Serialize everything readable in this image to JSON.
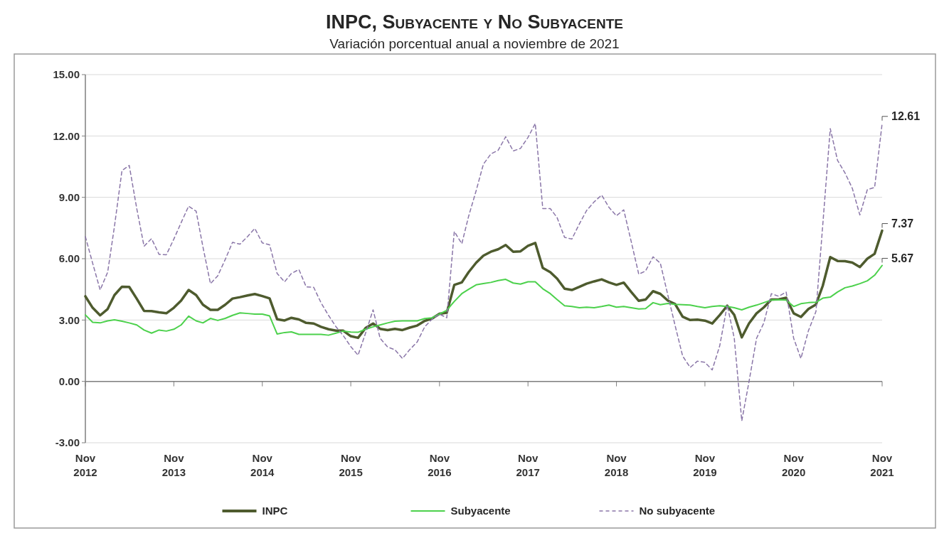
{
  "chart_data": {
    "type": "line",
    "title": "INPC, Subyacente y No Subyacente",
    "subtitle": "Variación porcentual anual a noviembre de 2021",
    "x": [
      "2012-11",
      "2012-12",
      "2013-01",
      "2013-02",
      "2013-03",
      "2013-04",
      "2013-05",
      "2013-06",
      "2013-07",
      "2013-08",
      "2013-09",
      "2013-10",
      "2013-11",
      "2013-12",
      "2014-01",
      "2014-02",
      "2014-03",
      "2014-04",
      "2014-05",
      "2014-06",
      "2014-07",
      "2014-08",
      "2014-09",
      "2014-10",
      "2014-11",
      "2014-12",
      "2015-01",
      "2015-02",
      "2015-03",
      "2015-04",
      "2015-05",
      "2015-06",
      "2015-07",
      "2015-08",
      "2015-09",
      "2015-10",
      "2015-11",
      "2015-12",
      "2016-01",
      "2016-02",
      "2016-03",
      "2016-04",
      "2016-05",
      "2016-06",
      "2016-07",
      "2016-08",
      "2016-09",
      "2016-10",
      "2016-11",
      "2016-12",
      "2017-01",
      "2017-02",
      "2017-03",
      "2017-04",
      "2017-05",
      "2017-06",
      "2017-07",
      "2017-08",
      "2017-09",
      "2017-10",
      "2017-11",
      "2017-12",
      "2018-01",
      "2018-02",
      "2018-03",
      "2018-04",
      "2018-05",
      "2018-06",
      "2018-07",
      "2018-08",
      "2018-09",
      "2018-10",
      "2018-11",
      "2018-12",
      "2019-01",
      "2019-02",
      "2019-03",
      "2019-04",
      "2019-05",
      "2019-06",
      "2019-07",
      "2019-08",
      "2019-09",
      "2019-10",
      "2019-11",
      "2019-12",
      "2020-01",
      "2020-02",
      "2020-03",
      "2020-04",
      "2020-05",
      "2020-06",
      "2020-07",
      "2020-08",
      "2020-09",
      "2020-10",
      "2020-11",
      "2020-12",
      "2021-01",
      "2021-02",
      "2021-03",
      "2021-04",
      "2021-05",
      "2021-06",
      "2021-07",
      "2021-08",
      "2021-09",
      "2021-10",
      "2021-11"
    ],
    "series": [
      {
        "name": "INPC",
        "color": "#4e5b2e",
        "line_style": "solid",
        "values": [
          4.16,
          3.6,
          3.23,
          3.54,
          4.22,
          4.63,
          4.62,
          4.04,
          3.45,
          3.44,
          3.38,
          3.33,
          3.6,
          3.95,
          4.47,
          4.22,
          3.75,
          3.5,
          3.5,
          3.75,
          4.05,
          4.12,
          4.2,
          4.27,
          4.17,
          4.06,
          3.04,
          2.98,
          3.11,
          3.03,
          2.86,
          2.83,
          2.67,
          2.55,
          2.48,
          2.48,
          2.21,
          2.13,
          2.61,
          2.83,
          2.57,
          2.51,
          2.57,
          2.51,
          2.63,
          2.73,
          2.96,
          3.07,
          3.31,
          3.36,
          4.72,
          4.84,
          5.34,
          5.8,
          6.15,
          6.34,
          6.46,
          6.67,
          6.34,
          6.36,
          6.63,
          6.77,
          5.55,
          5.34,
          5.03,
          4.53,
          4.47,
          4.62,
          4.78,
          4.89,
          4.99,
          4.84,
          4.72,
          4.83,
          4.37,
          3.94,
          4.0,
          4.41,
          4.28,
          3.95,
          3.78,
          3.16,
          3.0,
          3.02,
          2.97,
          2.83,
          3.24,
          3.7,
          3.25,
          2.15,
          2.84,
          3.33,
          3.62,
          4.0,
          4.01,
          4.09,
          3.33,
          3.15,
          3.54,
          3.76,
          4.67,
          6.08,
          5.89,
          5.88,
          5.81,
          5.59,
          6.0,
          6.24,
          7.37
        ]
      },
      {
        "name": "Subyacente",
        "color": "#4cd14c",
        "line_style": "solid",
        "values": [
          3.25,
          2.89,
          2.86,
          2.96,
          3.01,
          2.94,
          2.86,
          2.76,
          2.51,
          2.36,
          2.51,
          2.46,
          2.55,
          2.76,
          3.19,
          2.96,
          2.86,
          3.08,
          2.98,
          3.08,
          3.23,
          3.35,
          3.32,
          3.29,
          3.29,
          3.2,
          2.32,
          2.39,
          2.42,
          2.3,
          2.3,
          2.3,
          2.3,
          2.26,
          2.36,
          2.46,
          2.41,
          2.4,
          2.55,
          2.67,
          2.76,
          2.86,
          2.94,
          2.96,
          2.96,
          2.96,
          3.07,
          3.11,
          3.29,
          3.48,
          3.91,
          4.29,
          4.5,
          4.72,
          4.78,
          4.84,
          4.93,
          4.99,
          4.81,
          4.76,
          4.87,
          4.87,
          4.53,
          4.29,
          4.0,
          3.7,
          3.66,
          3.6,
          3.63,
          3.6,
          3.66,
          3.73,
          3.63,
          3.66,
          3.6,
          3.54,
          3.56,
          3.85,
          3.75,
          3.81,
          3.77,
          3.75,
          3.73,
          3.66,
          3.6,
          3.66,
          3.7,
          3.66,
          3.6,
          3.5,
          3.63,
          3.73,
          3.85,
          3.98,
          3.99,
          3.98,
          3.66,
          3.8,
          3.85,
          3.87,
          4.07,
          4.12,
          4.37,
          4.58,
          4.66,
          4.78,
          4.92,
          5.19,
          5.67
        ]
      },
      {
        "name": "No subyacente",
        "color": "#8a76a8",
        "line_style": "dashed",
        "values": [
          7.08,
          5.78,
          4.47,
          5.34,
          7.58,
          10.31,
          10.56,
          8.45,
          6.61,
          6.98,
          6.21,
          6.19,
          6.96,
          7.76,
          8.57,
          8.32,
          6.58,
          4.78,
          5.16,
          5.96,
          6.8,
          6.71,
          7.08,
          7.48,
          6.77,
          6.68,
          5.28,
          4.87,
          5.28,
          5.47,
          4.62,
          4.6,
          3.85,
          3.23,
          2.67,
          2.24,
          1.7,
          1.28,
          2.36,
          3.5,
          2.11,
          1.68,
          1.55,
          1.12,
          1.55,
          1.93,
          2.67,
          3.04,
          3.29,
          3.11,
          7.33,
          6.73,
          8.07,
          9.32,
          10.62,
          11.12,
          11.3,
          11.96,
          11.27,
          11.39,
          11.93,
          12.61,
          8.45,
          8.45,
          8.01,
          7.04,
          6.96,
          7.7,
          8.36,
          8.78,
          9.11,
          8.51,
          8.1,
          8.39,
          6.83,
          5.24,
          5.4,
          6.09,
          5.78,
          4.22,
          2.73,
          1.24,
          0.68,
          0.99,
          0.93,
          0.56,
          1.74,
          3.73,
          2.11,
          -1.93,
          0.0,
          2.11,
          2.86,
          4.29,
          4.16,
          4.37,
          2.11,
          1.12,
          2.48,
          3.42,
          7.64,
          12.36,
          10.81,
          10.19,
          9.44,
          8.14,
          9.38,
          9.48,
          12.61
        ]
      }
    ],
    "xlim": [
      "2012-11",
      "2021-11"
    ],
    "xticks": [
      {
        "value": "2012-11",
        "label": "Nov 2012"
      },
      {
        "value": "2013-11",
        "label": "Nov 2013"
      },
      {
        "value": "2014-11",
        "label": "Nov 2014"
      },
      {
        "value": "2015-11",
        "label": "Nov 2015"
      },
      {
        "value": "2016-11",
        "label": "Nov 2016"
      },
      {
        "value": "2017-11",
        "label": "Nov 2017"
      },
      {
        "value": "2018-11",
        "label": "Nov 2018"
      },
      {
        "value": "2019-11",
        "label": "Nov 2019"
      },
      {
        "value": "2020-11",
        "label": "Nov 2020"
      },
      {
        "value": "2021-11",
        "label": "Nov 2021"
      }
    ],
    "ylim": [
      -3,
      15
    ],
    "yticks": [
      {
        "value": -3,
        "label": "-3.00"
      },
      {
        "value": 0,
        "label": "0.00"
      },
      {
        "value": 3,
        "label": "3.00"
      },
      {
        "value": 6,
        "label": "6.00"
      },
      {
        "value": 9,
        "label": "9.00"
      },
      {
        "value": 12,
        "label": "12.00"
      },
      {
        "value": 15,
        "label": "15.00"
      }
    ],
    "annotations": [
      {
        "text": "12.61",
        "x": "2021-11",
        "y": 12.61
      },
      {
        "text": "7.37",
        "x": "2021-11",
        "y": 7.37
      },
      {
        "text": "5.67",
        "x": "2021-11",
        "y": 5.67
      }
    ],
    "grid": "y",
    "legend": "bottom"
  }
}
